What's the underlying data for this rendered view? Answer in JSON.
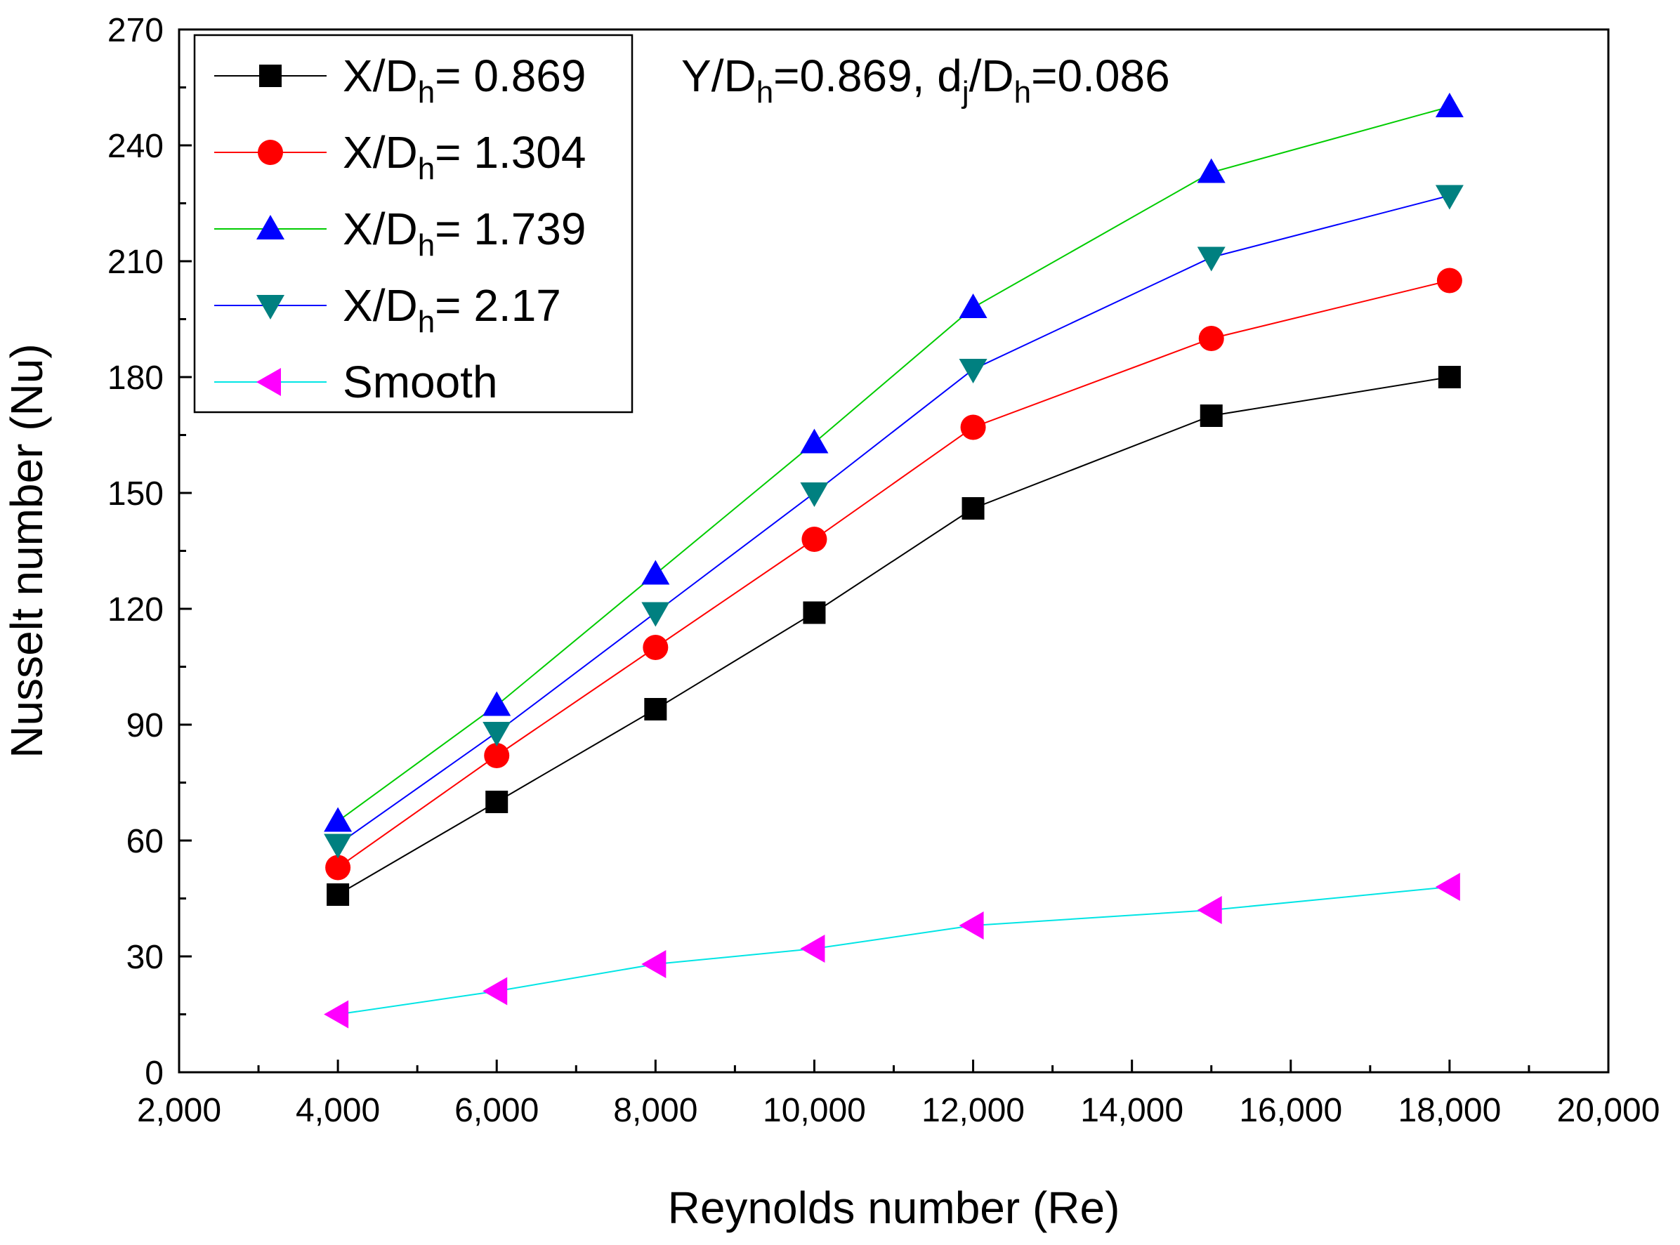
{
  "chart_data": {
    "type": "line",
    "title": "",
    "xlabel": "Reynolds number (Re)",
    "ylabel": "Nusselt number (Nu)",
    "xlim": [
      2000,
      20000
    ],
    "ylim": [
      0,
      270
    ],
    "x_ticks": [
      2000,
      4000,
      6000,
      8000,
      10000,
      12000,
      14000,
      16000,
      18000,
      20000
    ],
    "x_tick_labels": [
      "2,000",
      "4,000",
      "6,000",
      "8,000",
      "10,000",
      "12,000",
      "14,000",
      "16,000",
      "18,000",
      "20,000"
    ],
    "y_ticks": [
      0,
      30,
      60,
      90,
      120,
      150,
      180,
      210,
      240,
      270
    ],
    "y_tick_labels": [
      "0",
      "30",
      "60",
      "90",
      "120",
      "150",
      "180",
      "210",
      "240",
      "270"
    ],
    "grid": false,
    "legend_position": "top-left",
    "annotation": {
      "parts": [
        {
          "text": "Y/D",
          "style": "normal"
        },
        {
          "text": "h",
          "style": "sub"
        },
        {
          "text": "=0.869, d",
          "style": "normal"
        },
        {
          "text": "j",
          "style": "sub"
        },
        {
          "text": "/D",
          "style": "normal"
        },
        {
          "text": "h",
          "style": "sub"
        },
        {
          "text": "=0.086",
          "style": "normal"
        }
      ]
    },
    "x": [
      4000,
      6000,
      8000,
      10000,
      12000,
      15000,
      18000
    ],
    "series": [
      {
        "name": "X/Dh= 0.869",
        "label_main": "X/D",
        "label_sub": "h",
        "label_rest": "= 0.869",
        "marker": "square",
        "marker_color": "#000000",
        "line_color": "#000000",
        "values": [
          46,
          70,
          94,
          119,
          146,
          170,
          180
        ]
      },
      {
        "name": "X/Dh= 1.304",
        "label_main": "X/D",
        "label_sub": "h",
        "label_rest": "= 1.304",
        "marker": "circle",
        "marker_color": "#ff0000",
        "line_color": "#ff0000",
        "values": [
          53,
          82,
          110,
          138,
          167,
          190,
          205
        ]
      },
      {
        "name": "X/Dh= 1.739",
        "label_main": "X/D",
        "label_sub": "h",
        "label_rest": "= 1.739",
        "marker": "triangle-up",
        "marker_color": "#0000ff",
        "line_color": "#00cc00",
        "values": [
          65,
          95,
          129,
          163,
          198,
          233,
          250
        ]
      },
      {
        "name": "X/Dh= 2.17",
        "label_main": "X/D",
        "label_sub": "h",
        "label_rest": "= 2.17",
        "marker": "triangle-down",
        "marker_color": "#008080",
        "line_color": "#0000ff",
        "values": [
          59,
          88,
          119,
          150,
          182,
          211,
          227
        ]
      },
      {
        "name": "Smooth",
        "label_main": "Smooth",
        "label_sub": "",
        "label_rest": "",
        "marker": "triangle-left",
        "marker_color": "#ff00ff",
        "line_color": "#00e5e5",
        "values": [
          15,
          21,
          28,
          32,
          38,
          42,
          48
        ]
      }
    ]
  }
}
